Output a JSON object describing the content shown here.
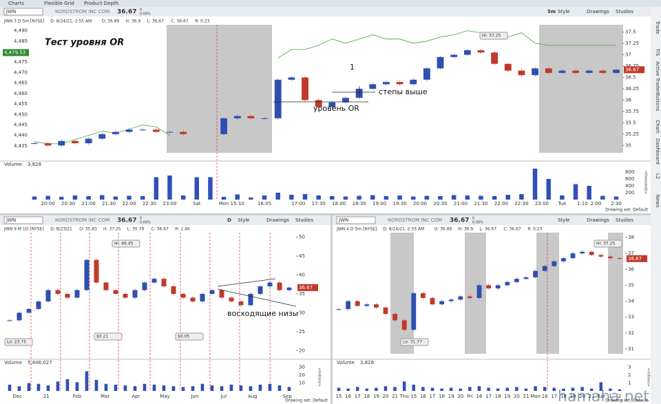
{
  "ui": {
    "tabs": [
      "Charts",
      "Flexible Grid",
      "Product Depth"
    ],
    "toolbar": [
      "Style",
      "Drawings",
      "Studies"
    ],
    "sidebar": [
      "Trade",
      "TIS",
      "Active Trader",
      "Buttons",
      "Chart",
      "Dashboard",
      "L2",
      "News"
    ],
    "drawing_set": "Drawing set: Default",
    "watermark": "hamaha.net"
  },
  "chart_data": [
    {
      "type": "candlestick",
      "symbol": "JWN",
      "company": "NORDSTROM INC COM",
      "last": 36.67,
      "change": 0,
      "change_pct": "0.00%",
      "timeframe": "5m",
      "info": [
        "JWN 3 D 5m [NYSE]",
        "D: 8/24/21, 2:55 AM",
        "O: 36.89",
        "H: 36.9",
        "L: 36.67",
        "C: 36.67",
        "R: 0.23"
      ],
      "annotations": [
        "Тест уровня OR",
        "1",
        "степы выше",
        "уровень OR",
        "Hi: 37.25"
      ],
      "xlim": [
        0,
        43
      ],
      "xticks": [
        {
          "value": 1,
          "label": "20:00"
        },
        {
          "value": 2.5,
          "label": "20:30"
        },
        {
          "value": 4,
          "label": "21:00"
        },
        {
          "value": 5.5,
          "label": "21:30"
        },
        {
          "value": 7,
          "label": "22:00"
        },
        {
          "value": 8.5,
          "label": "22:30"
        },
        {
          "value": 10,
          "label": "23:00"
        },
        {
          "value": 12,
          "label": "Sat"
        },
        {
          "value": 14,
          "label": "Mon"
        },
        {
          "value": 15,
          "label": "15:10"
        },
        {
          "value": 17,
          "label": "16:05"
        },
        {
          "value": 19.5,
          "label": "17:00"
        },
        {
          "value": 21,
          "label": "17:30"
        },
        {
          "value": 22.5,
          "label": "18:00"
        },
        {
          "value": 24,
          "label": "18:30"
        },
        {
          "value": 25.5,
          "label": "19:00"
        },
        {
          "value": 27,
          "label": "19:30"
        },
        {
          "value": 28.5,
          "label": "20:00"
        },
        {
          "value": 30,
          "label": "20:30"
        },
        {
          "value": 31.5,
          "label": "21:00"
        },
        {
          "value": 33,
          "label": "21:30"
        },
        {
          "value": 34.5,
          "label": "22:00"
        },
        {
          "value": 36,
          "label": "22:30"
        },
        {
          "value": 37.5,
          "label": "23:00"
        },
        {
          "value": 39,
          "label": "Tue"
        },
        {
          "value": 40.5,
          "label": "1:10"
        },
        {
          "value": 41.5,
          "label": "2:00"
        },
        {
          "value": 43,
          "label": "2:30"
        }
      ],
      "ylim": [
        34.9,
        37.6
      ],
      "yticks": [
        35,
        35.25,
        35.5,
        35.75,
        36,
        36.25,
        36.5,
        36.75,
        37,
        37.25,
        37.5
      ],
      "y2lim": [
        4433,
        4491.5
      ],
      "y2ticks": [
        {
          "value": 4435,
          "label": "4,435"
        },
        {
          "value": 4440,
          "label": "4,440"
        },
        {
          "value": 4445,
          "label": "4,445"
        },
        {
          "value": 4450,
          "label": "4,450"
        },
        {
          "value": 4455,
          "label": "4,455"
        },
        {
          "value": 4460,
          "label": "4,460"
        },
        {
          "value": 4465,
          "label": "4,465"
        },
        {
          "value": 4470,
          "label": "4,470"
        },
        {
          "value": 4475,
          "label": "4,475"
        },
        {
          "value": 4480,
          "label": "4,480"
        },
        {
          "value": 4485,
          "label": "4,485"
        },
        {
          "value": 4490,
          "label": "4,490"
        }
      ],
      "y2_last": {
        "value": 4479.53,
        "label": "4,479.53"
      },
      "series": [
        {
          "name": "JWN",
          "values": [
            35.05,
            35.0,
            35.1,
            35.05,
            35.15,
            35.25,
            35.3,
            35.35,
            35.35,
            35.3,
            35.3,
            35.25,
            null,
            null,
            35.6,
            35.65,
            35.6,
            35.6,
            36.45,
            36.5,
            36.0,
            35.85,
            35.95,
            36.05,
            36.25,
            36.35,
            36.4,
            36.35,
            36.45,
            36.7,
            36.95,
            37.0,
            37.1,
            37.05,
            36.8,
            36.65,
            36.55,
            36.7,
            36.6,
            36.65,
            36.6,
            36.65,
            36.6,
            36.67
          ]
        },
        {
          "name": "Comparison (LINE, SPX)",
          "color": "#3fa535",
          "axis": "y2",
          "values": [
            4437,
            4436,
            4436,
            4438,
            4440,
            4442,
            4441,
            4443,
            4445,
            4444,
            4440,
            null,
            null,
            null,
            null,
            null,
            null,
            null,
            4477,
            4481,
            4481,
            4483,
            4486,
            4484,
            4486,
            4488,
            4486,
            4486,
            4484,
            4485,
            4487,
            4488,
            4490,
            4489,
            4487,
            4487,
            4489,
            4484,
            4483,
            4483,
            4483,
            4483,
            4483,
            4483
          ]
        }
      ],
      "volume": {
        "label": "Volume",
        "total": "3,828",
        "unit": "<thousands>",
        "ylim": [
          0,
          1000
        ],
        "yticks": [
          200,
          400,
          600,
          800
        ],
        "values": [
          90,
          110,
          80,
          120,
          100,
          130,
          90,
          110,
          100,
          650,
          700,
          120,
          650,
          650,
          80,
          150,
          60,
          120,
          200,
          140,
          160,
          120,
          100,
          90,
          110,
          130,
          100,
          120,
          90,
          110,
          100,
          130,
          120,
          110,
          100,
          140,
          160,
          900,
          600,
          120,
          450,
          400,
          110,
          90
        ]
      }
    },
    {
      "type": "candlestick",
      "symbol": "JWN",
      "company": "NORDSTROM INC COM",
      "last": 36.67,
      "change": 0,
      "change_pct": "0.00%",
      "timeframe": "D",
      "info": [
        "JWN 9 M 1D [NYSE]",
        "D: 8/23/21",
        "O: 35.83",
        "H: 37.25",
        "L: 35.79",
        "C: 36.67",
        "R: 1.46"
      ],
      "annotations": [
        "Hi: 46.45",
        "Lo: 23.75",
        "восходящие низы",
        "$0.21",
        "$0.05"
      ],
      "xlim": [
        0,
        29
      ],
      "xticks": [
        {
          "value": 0.8,
          "label": "Dec"
        },
        {
          "value": 3.8,
          "label": "21"
        },
        {
          "value": 7,
          "label": "Feb"
        },
        {
          "value": 9.9,
          "label": "Mar"
        },
        {
          "value": 13.1,
          "label": "Apr"
        },
        {
          "value": 16.1,
          "label": "May"
        },
        {
          "value": 19.2,
          "label": "Jun"
        },
        {
          "value": 22.2,
          "label": "Jul"
        },
        {
          "value": 25.2,
          "label": "Aug"
        },
        {
          "value": 28.8,
          "label": "Sep"
        }
      ],
      "ylim": [
        19.5,
        50.5
      ],
      "yticks": [
        20,
        25,
        30,
        35,
        40,
        45,
        50
      ],
      "series": [
        {
          "name": "JWN",
          "values": [
            28,
            30,
            31,
            33,
            36,
            35,
            34,
            36,
            44,
            38,
            36,
            35,
            34,
            36,
            38,
            39,
            37,
            35,
            34,
            33,
            35,
            36,
            34,
            33,
            32,
            35,
            37,
            38,
            36,
            36.67
          ]
        }
      ],
      "volume": {
        "label": "Volume",
        "total": "5,446,027",
        "unit": "<millions>",
        "ylim": [
          0,
          35
        ],
        "yticks": [
          10,
          20,
          30
        ],
        "values": [
          8,
          6,
          10,
          9,
          7,
          12,
          15,
          11,
          25,
          14,
          9,
          8,
          7,
          6,
          9,
          8,
          7,
          6,
          5,
          6,
          9,
          7,
          6,
          8,
          7,
          6,
          8,
          9,
          7,
          5
        ]
      }
    },
    {
      "type": "candlestick",
      "symbol": "JWN",
      "company": "NORDSTROM INC COM",
      "last": 36.67,
      "change": 0,
      "change_pct": "0.00%",
      "info": [
        "JWN 4 D 5m [NYSE]",
        "D: 8/24/21, 2:55 AM",
        "O: 36.89",
        "H: 36.9",
        "L: 36.67",
        "C: 36.67",
        "R: 0.23"
      ],
      "annotations": [
        "Hi: 37.25",
        "Lo: 31.77"
      ],
      "xlim": [
        0,
        30
      ],
      "xticks": [
        {
          "value": 0,
          "label": "15"
        },
        {
          "value": 1,
          "label": "16"
        },
        {
          "value": 2,
          "label": "17"
        },
        {
          "value": 3,
          "label": "18"
        },
        {
          "value": 4,
          "label": "19"
        },
        {
          "value": 5,
          "label": "20"
        },
        {
          "value": 6,
          "label": "21"
        },
        {
          "value": 7,
          "label": "Thu"
        },
        {
          "value": 8,
          "label": "15"
        },
        {
          "value": 9,
          "label": "16"
        },
        {
          "value": 10,
          "label": "17"
        },
        {
          "value": 11,
          "label": "18"
        },
        {
          "value": 12,
          "label": "19"
        },
        {
          "value": 13,
          "label": "20"
        },
        {
          "value": 14,
          "label": "Fri"
        },
        {
          "value": 15,
          "label": "16"
        },
        {
          "value": 16,
          "label": "17"
        },
        {
          "value": 17,
          "label": "18"
        },
        {
          "value": 18,
          "label": "19"
        },
        {
          "value": 19,
          "label": "20"
        },
        {
          "value": 20,
          "label": "21"
        },
        {
          "value": 21,
          "label": "Mon"
        },
        {
          "value": 22,
          "label": "16"
        },
        {
          "value": 23,
          "label": "17"
        },
        {
          "value": 24,
          "label": "18"
        },
        {
          "value": 25,
          "label": "19"
        },
        {
          "value": 26,
          "label": "20"
        },
        {
          "value": 27,
          "label": "21"
        },
        {
          "value": 28,
          "label": "Tue"
        },
        {
          "value": 29,
          "label": "1"
        },
        {
          "value": 30,
          "label": "2"
        }
      ],
      "ylim": [
        30.87,
        38.13
      ],
      "yticks": [
        31,
        32,
        33,
        34,
        35,
        36,
        37,
        38
      ],
      "series": [
        {
          "name": "JWN",
          "values": [
            33.5,
            34,
            33.7,
            33.8,
            33.6,
            33.2,
            32.8,
            32.2,
            34.5,
            34.2,
            33.8,
            34,
            34.1,
            34.3,
            34.2,
            35,
            34.8,
            35,
            35.2,
            35.4,
            35.5,
            35.9,
            36.2,
            36.5,
            36.7,
            37.0,
            37.1,
            36.9,
            36.8,
            36.7,
            36.67
          ]
        }
      ],
      "volume": {
        "label": "Volume",
        "total": "3,828",
        "unit": "<millions>",
        "ylim": [
          0,
          3.5
        ],
        "yticks": [
          1,
          2,
          3
        ],
        "values": [
          0.4,
          0.3,
          0.5,
          0.3,
          0.4,
          0.6,
          0.5,
          1.2,
          0.8,
          0.5,
          0.4,
          0.3,
          0.4,
          0.3,
          0.5,
          0.6,
          0.4,
          0.3,
          0.4,
          0.5,
          0.3,
          0.6,
          0.5,
          0.4,
          0.3,
          0.4,
          0.5,
          0.3,
          1.1,
          0.3,
          0.2
        ]
      }
    }
  ]
}
